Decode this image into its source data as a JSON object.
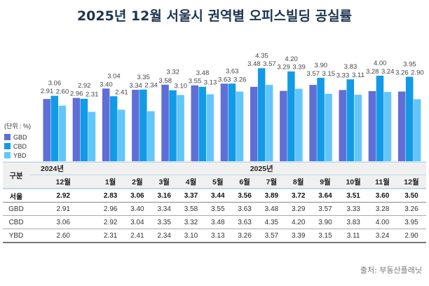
{
  "title": "2025년 12월 서울시 권역별 오피스빌딩 공실률",
  "unit_label": "(단위 : %)",
  "source": "출처: 부동산플래닛",
  "chart_data": {
    "type": "bar",
    "title": "2025년 12월 서울시 권역별 오피스빌딩 공실률",
    "categories": [
      "12월",
      "1월",
      "2월",
      "3월",
      "4월",
      "5월",
      "6월",
      "7월",
      "8월",
      "9월",
      "10월",
      "11월",
      "12월"
    ],
    "years": [
      {
        "label": "2024년"
      },
      {
        "label": "2025년"
      }
    ],
    "ylim": [
      0,
      4.5
    ],
    "legend_position": "left",
    "series": [
      {
        "name": "GBD",
        "color": "#5f6fd6",
        "values": [
          2.91,
          2.96,
          3.4,
          3.34,
          3.58,
          3.55,
          3.63,
          3.48,
          3.29,
          3.57,
          3.33,
          3.28,
          3.26
        ]
      },
      {
        "name": "CBD",
        "color": "#129ae6",
        "values": [
          3.06,
          2.92,
          3.04,
          3.35,
          3.32,
          3.48,
          3.63,
          4.35,
          4.2,
          3.9,
          3.83,
          4.0,
          3.95
        ]
      },
      {
        "name": "YBD",
        "color": "#62c6fb",
        "values": [
          2.6,
          2.31,
          2.41,
          2.34,
          3.1,
          3.13,
          3.26,
          3.57,
          3.39,
          3.15,
          3.11,
          3.24,
          2.9
        ]
      }
    ]
  },
  "table": {
    "corner": "구분",
    "rows": [
      {
        "label": "서울",
        "values": [
          "2.92",
          "2.83",
          "3.06",
          "3.16",
          "3.37",
          "3.44",
          "3.56",
          "3.89",
          "3.72",
          "3.64",
          "3.51",
          "3.60",
          "3.50"
        ]
      },
      {
        "label": "GBD",
        "values": [
          "2.91",
          "2.96",
          "3.40",
          "3.34",
          "3.58",
          "3.55",
          "3.63",
          "3.48",
          "3.29",
          "3.57",
          "3.33",
          "3.28",
          "3.26"
        ]
      },
      {
        "label": "CBD",
        "values": [
          "3.06",
          "2.92",
          "3.04",
          "3.35",
          "3.32",
          "3.48",
          "3.63",
          "4.35",
          "4.20",
          "3.90",
          "3.83",
          "4.00",
          "3.95"
        ]
      },
      {
        "label": "YBD",
        "values": [
          "2.60",
          "2.31",
          "2.41",
          "2.34",
          "3.10",
          "3.13",
          "3.26",
          "3.57",
          "3.39",
          "3.15",
          "3.11",
          "3.24",
          "2.90"
        ]
      }
    ]
  }
}
